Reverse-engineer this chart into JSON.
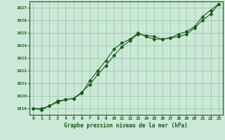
{
  "title": "Graphe pression niveau de la mer (hPa)",
  "background_color": "#cce8d8",
  "line_color": "#1a5c1a",
  "grid_color": "#99ccaa",
  "xlim": [
    -0.5,
    23.5
  ],
  "ylim": [
    1018.5,
    1027.5
  ],
  "yticks": [
    1019,
    1020,
    1021,
    1022,
    1023,
    1024,
    1025,
    1026,
    1027
  ],
  "xticks": [
    0,
    1,
    2,
    3,
    4,
    5,
    6,
    7,
    8,
    9,
    10,
    11,
    12,
    13,
    14,
    15,
    16,
    17,
    18,
    19,
    20,
    21,
    22,
    23
  ],
  "series1_x": [
    0,
    1,
    2,
    3,
    4,
    5,
    6,
    7,
    8,
    9,
    10,
    11,
    12,
    13,
    14,
    15,
    16,
    17,
    18,
    19,
    20,
    21,
    22,
    23
  ],
  "series1_y": [
    1019.0,
    1018.9,
    1019.2,
    1019.5,
    1019.7,
    1019.8,
    1020.3,
    1020.9,
    1021.7,
    1022.4,
    1023.2,
    1023.9,
    1024.4,
    1024.9,
    1024.8,
    1024.7,
    1024.5,
    1024.6,
    1024.9,
    1025.1,
    1025.5,
    1026.3,
    1026.8,
    1027.3
  ],
  "series2_x": [
    0,
    1,
    2,
    3,
    4,
    5,
    6,
    7,
    8,
    9,
    10,
    11,
    12,
    13,
    14,
    15,
    16,
    17,
    18,
    19,
    20,
    21,
    22,
    23
  ],
  "series2_y": [
    1019.0,
    1019.0,
    1019.2,
    1019.6,
    1019.7,
    1019.8,
    1020.2,
    1021.2,
    1022.0,
    1022.8,
    1023.7,
    1024.2,
    1024.5,
    1025.0,
    1024.7,
    1024.5,
    1024.5,
    1024.6,
    1024.7,
    1024.9,
    1025.4,
    1026.0,
    1026.5,
    1027.3
  ]
}
